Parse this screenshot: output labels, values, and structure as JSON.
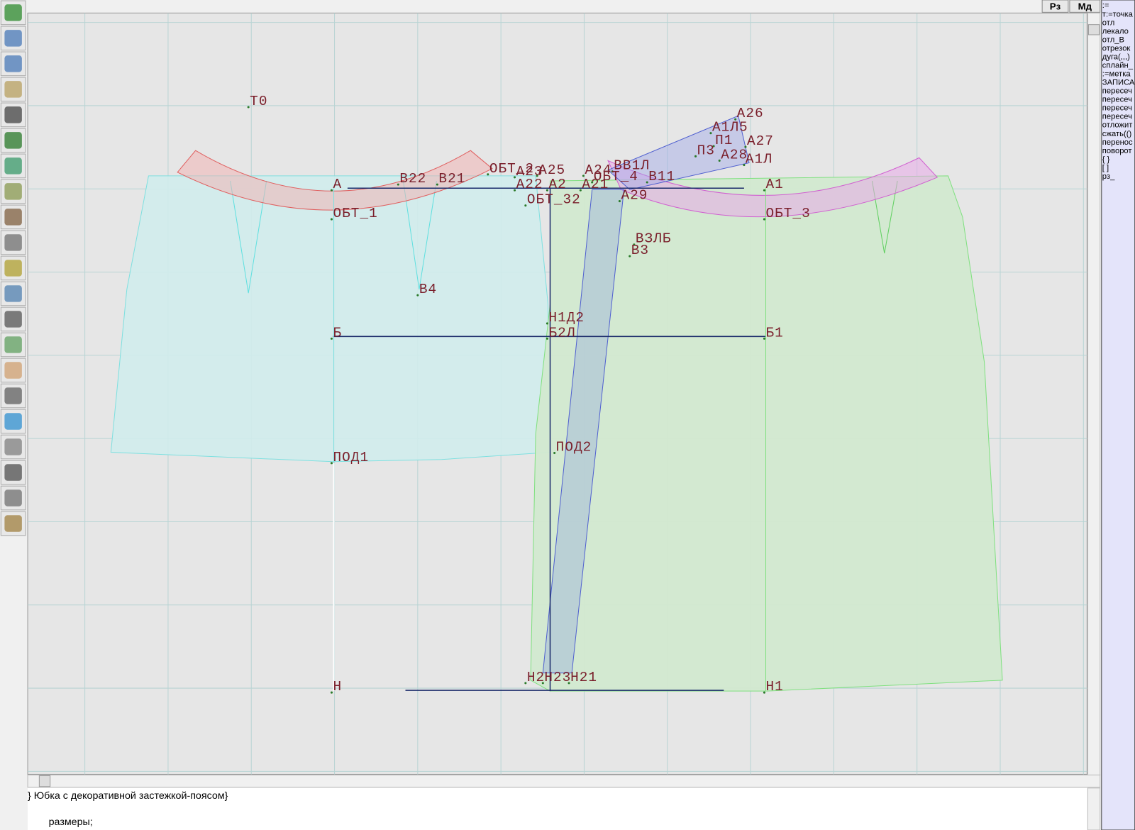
{
  "top_buttons": [
    "Рз",
    "Мд"
  ],
  "labels": [
    "Т0",
    "А26",
    "А1Л5",
    "П1",
    "А27",
    "П3",
    "А28",
    "А1Л",
    "ОБТ_2",
    "А23",
    "А25",
    "А24",
    "ВВ1Л",
    "В22",
    "В21",
    "А",
    "А22",
    "А2",
    "А21",
    "ОБТ_4",
    "В11",
    "А1",
    "ОБТ_32",
    "А29",
    "ОБТ_1",
    "ОБТ_3",
    "ВЗЛБ",
    "В3",
    "В4",
    "Н1Д2",
    "Б",
    "Б2Л",
    "Б1",
    "ПОД1",
    "ПОД2",
    "Н2",
    "Н23",
    "Н21",
    "Н",
    "Н1"
  ],
  "command_list": [
    ":=",
    "т:=точка",
    "отл",
    "лекало",
    "отл_В",
    "отрезок",
    "дуга(,,,)",
    "сплайн_",
    ":=метка",
    "ЗАПИСА",
    "пересеч",
    "пересеч",
    "пересеч",
    "пересеч",
    "отложит",
    "сжать(()",
    "перенос",
    "поворот",
    "{ }",
    "[ ]",
    "рз_"
  ],
  "editor": {
    "lines": [
      "} Юбка с декоративной застежкой-поясом}",
      "размеры;"
    ]
  }
}
